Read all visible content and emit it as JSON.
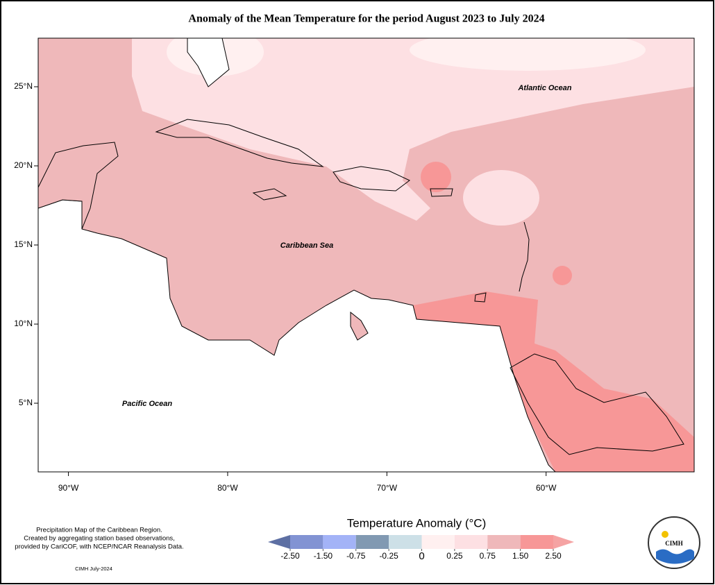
{
  "title": "Anomaly of the Mean Temperature for the period August 2023 to July 2024",
  "map": {
    "lon_range": [
      -91.9,
      -50.7
    ],
    "lat_range": [
      0.66,
      28.07
    ],
    "lon_ticks": [
      {
        "value": -90,
        "label": "90°W"
      },
      {
        "value": -80,
        "label": "80°W"
      },
      {
        "value": -70,
        "label": "70°W"
      },
      {
        "value": -60,
        "label": "60°W"
      }
    ],
    "lat_ticks": [
      {
        "value": 5,
        "label": "5°N"
      },
      {
        "value": 10,
        "label": "10°N"
      },
      {
        "value": 15,
        "label": "15°N"
      },
      {
        "value": 20,
        "label": "20°N"
      },
      {
        "value": 25,
        "label": "25°N"
      }
    ],
    "labels": [
      "Atlantic Ocean",
      "Caribbean Sea",
      "Pacific Ocean"
    ]
  },
  "legend": {
    "title": "Temperature Anomaly (°C)",
    "ticks": [
      {
        "value": -2.5,
        "label": "-2.50"
      },
      {
        "value": -1.5,
        "label": "-1.50"
      },
      {
        "value": -0.75,
        "label": "-0.75"
      },
      {
        "value": -0.25,
        "label": "-0.25"
      },
      0,
      {
        "value": 0.25,
        "label": "0.25"
      },
      {
        "value": 0.75,
        "label": "0.75"
      },
      {
        "value": 1.5,
        "label": "1.50"
      },
      {
        "value": 2.5,
        "label": "2.50"
      }
    ],
    "colors": [
      "#5d6fa3",
      "#8293d3",
      "#a3b3f7",
      "#8199b2",
      "#cde0e7",
      "#fff0f0",
      "#fde0e3",
      "#efb8ba",
      "#f79797",
      "#f5a3a3"
    ]
  },
  "footnote": [
    "Precipitation Map of the Caribbean Region.",
    "Created by aggregating station based observations,",
    "provided by CariCOF, with NCEP/NCAR Reanalysis Data."
  ],
  "credit": "CIMH July-2024",
  "logo": "CIMH"
}
